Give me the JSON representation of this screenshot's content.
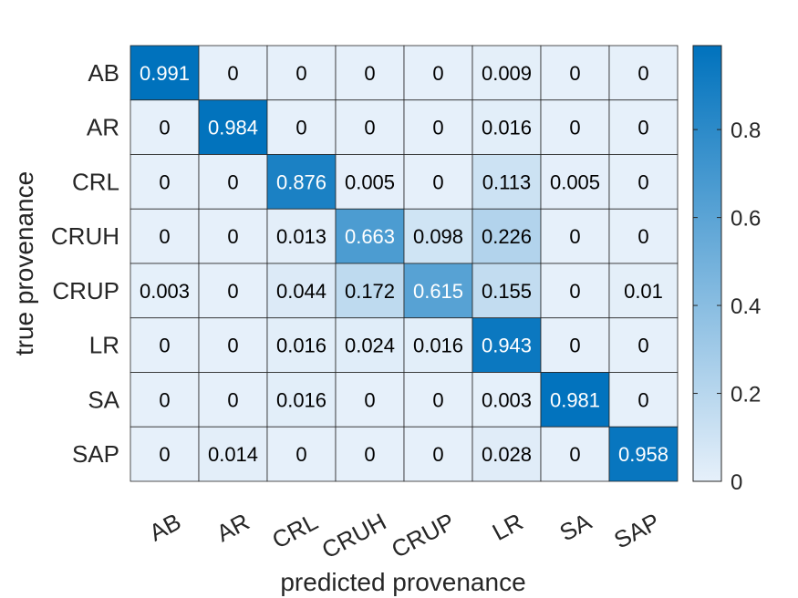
{
  "chart_data": {
    "type": "heatmap",
    "title": "",
    "xlabel": "predicted provenance",
    "ylabel": "true provenance",
    "x_categories": [
      "AB",
      "AR",
      "CRL",
      "CRUH",
      "CRUP",
      "LR",
      "SA",
      "SAP"
    ],
    "y_categories": [
      "AB",
      "AR",
      "CRL",
      "CRUH",
      "CRUP",
      "LR",
      "SA",
      "SAP"
    ],
    "values": [
      [
        0.991,
        0,
        0,
        0,
        0,
        0.009,
        0,
        0
      ],
      [
        0,
        0.984,
        0,
        0,
        0,
        0.016,
        0,
        0
      ],
      [
        0,
        0,
        0.876,
        0.005,
        0,
        0.113,
        0.005,
        0
      ],
      [
        0,
        0,
        0.013,
        0.663,
        0.098,
        0.226,
        0,
        0
      ],
      [
        0.003,
        0,
        0.044,
        0.172,
        0.615,
        0.155,
        0,
        0.01
      ],
      [
        0,
        0,
        0.016,
        0.024,
        0.016,
        0.943,
        0,
        0
      ],
      [
        0,
        0,
        0.016,
        0,
        0,
        0.003,
        0.981,
        0
      ],
      [
        0,
        0.014,
        0,
        0,
        0,
        0.028,
        0,
        0.958
      ]
    ],
    "colorbar": {
      "range": [
        0,
        0.991
      ],
      "ticks": [
        0,
        0.2,
        0.4,
        0.6,
        0.8
      ],
      "tick_labels": [
        "0",
        "0.2",
        "0.4",
        "0.6",
        "0.8"
      ],
      "color_low": "#e6f0fa",
      "color_high": "#0072bd"
    },
    "x_tick_rotation": "rotated ~30 degrees",
    "grid": true,
    "legend": "colorbar right"
  }
}
